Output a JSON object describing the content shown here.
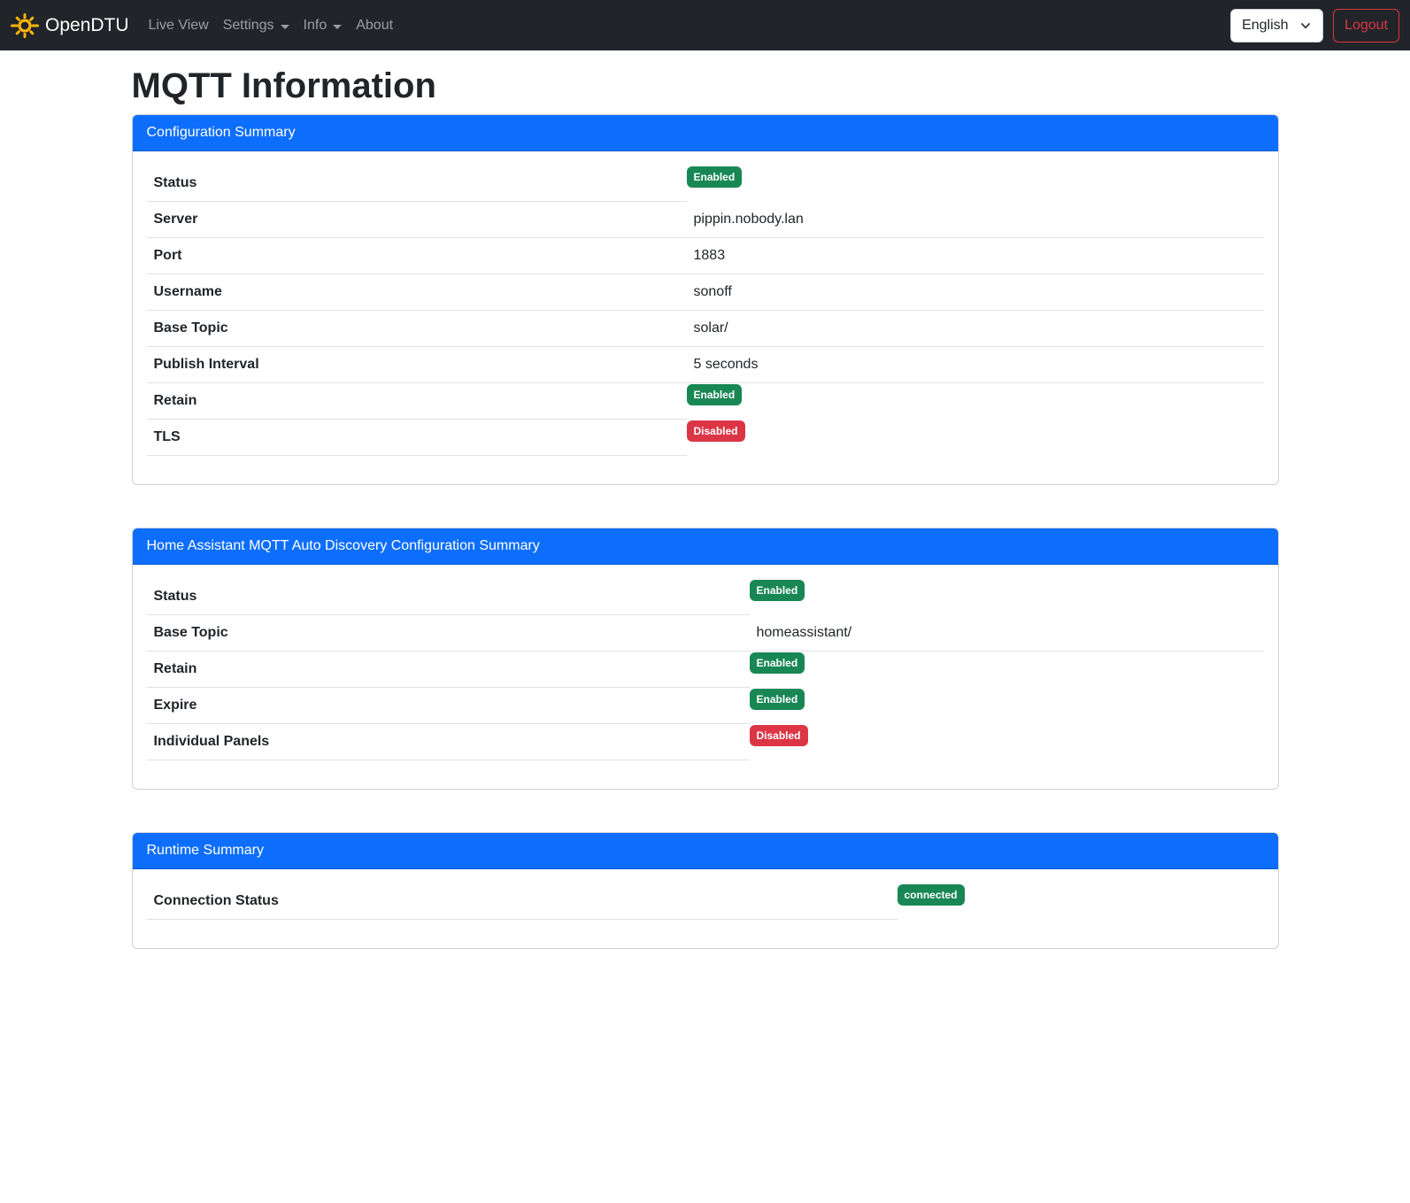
{
  "navbar": {
    "brand": "OpenDTU",
    "items": [
      {
        "label": "Live View",
        "has_caret": false
      },
      {
        "label": "Settings",
        "has_caret": true
      },
      {
        "label": "Info",
        "has_caret": true
      },
      {
        "label": "About",
        "has_caret": false
      }
    ],
    "language_selector": {
      "value": "English"
    },
    "logout_label": "Logout"
  },
  "page": {
    "title": "MQTT Information"
  },
  "cards": [
    {
      "title": "Configuration Summary",
      "label_col_width": 610,
      "rows": [
        {
          "label": "Status",
          "type": "badge",
          "value": "Enabled",
          "variant": "success"
        },
        {
          "label": "Server",
          "type": "text",
          "value": "pippin.nobody.lan"
        },
        {
          "label": "Port",
          "type": "text",
          "value": "1883"
        },
        {
          "label": "Username",
          "type": "text",
          "value": "sonoff"
        },
        {
          "label": "Base Topic",
          "type": "text",
          "value": "solar/"
        },
        {
          "label": "Publish Interval",
          "type": "text",
          "value": "5 seconds"
        },
        {
          "label": "Retain",
          "type": "badge",
          "value": "Enabled",
          "variant": "success"
        },
        {
          "label": "TLS",
          "type": "badge",
          "value": "Disabled",
          "variant": "danger"
        }
      ]
    },
    {
      "title": "Home Assistant MQTT Auto Discovery Configuration Summary",
      "label_col_width": 681,
      "rows": [
        {
          "label": "Status",
          "type": "badge",
          "value": "Enabled",
          "variant": "success"
        },
        {
          "label": "Base Topic",
          "type": "text",
          "value": "homeassistant/"
        },
        {
          "label": "Retain",
          "type": "badge",
          "value": "Enabled",
          "variant": "success"
        },
        {
          "label": "Expire",
          "type": "badge",
          "value": "Enabled",
          "variant": "success"
        },
        {
          "label": "Individual Panels",
          "type": "badge",
          "value": "Disabled",
          "variant": "danger"
        }
      ]
    },
    {
      "title": "Runtime Summary",
      "label_col_width": 848,
      "rows": [
        {
          "label": "Connection Status",
          "type": "badge",
          "value": "connected",
          "variant": "success"
        }
      ]
    }
  ],
  "colors": {
    "primary": "#0d6efd",
    "success": "#198754",
    "danger": "#dc3545",
    "navbar_bg": "#212529",
    "sun_icon": "#ffb40a",
    "logout": "#dc3545"
  }
}
